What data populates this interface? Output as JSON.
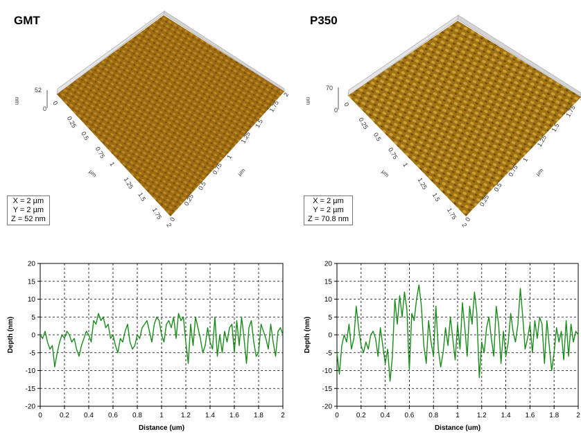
{
  "panels": [
    {
      "title": "GMT",
      "afm": {
        "z_max_label": "52",
        "z_min_label": "0",
        "z_unit": "nm",
        "axis_unit": "µm",
        "ticks_left": [
          "0",
          "0.25",
          "0.5",
          "0.75",
          "1",
          "1.25",
          "1.5",
          "1.75",
          "2"
        ],
        "ticks_right": [
          "0",
          "0.25",
          "0.5",
          "0.75",
          "1",
          "1.25",
          "1.5",
          "1.75",
          "2"
        ],
        "info": [
          "X = 2 µm",
          "Y = 2 µm",
          "Z = 52 nm"
        ],
        "colors": {
          "surface_dark": "#5a3a0a",
          "surface_mid": "#9c6a12",
          "surface_light": "#d9a830"
        }
      }
    },
    {
      "title": "P350",
      "afm": {
        "z_max_label": "70",
        "z_min_label": "0",
        "z_unit": "nm",
        "axis_unit": "µm",
        "ticks_left": [
          "0",
          "0.25",
          "0.5",
          "0.75",
          "1",
          "1.25",
          "1.5",
          "1.75",
          "2"
        ],
        "ticks_right": [
          "0",
          "0.25",
          "0.5",
          "0.75",
          "1",
          "1.25",
          "1.5",
          "1.75",
          "2"
        ],
        "info": [
          "X = 2 µm",
          "Y = 2 µm",
          "Z = 70.8 nm"
        ],
        "colors": {
          "surface_dark": "#4e3408",
          "surface_mid": "#a07214",
          "surface_light": "#e8c04a"
        }
      }
    }
  ],
  "chart_data": [
    {
      "type": "line",
      "title": "",
      "xlabel": "Distance (um)",
      "ylabel": "Depth (nm)",
      "xlim": [
        0,
        2
      ],
      "ylim": [
        -20,
        20
      ],
      "xticks": [
        "0",
        "0.2",
        "0.4",
        "0.6",
        "0.8",
        "1",
        "1.2",
        "1.4",
        "1.6",
        "1.8",
        "2"
      ],
      "yticks": [
        "20",
        "15",
        "10",
        "5",
        "0",
        "-5",
        "-10",
        "-15",
        "-20"
      ],
      "grid": "dashed",
      "line_color": "#1a8a1a",
      "series": [
        {
          "x": [
            0,
            0.02,
            0.04,
            0.06,
            0.08,
            0.1,
            0.12,
            0.14,
            0.16,
            0.18,
            0.2,
            0.22,
            0.24,
            0.26,
            0.28,
            0.3,
            0.32,
            0.34,
            0.36,
            0.38,
            0.4,
            0.42,
            0.44,
            0.46,
            0.48,
            0.5,
            0.52,
            0.54,
            0.56,
            0.58,
            0.6,
            0.62,
            0.64,
            0.66,
            0.68,
            0.7,
            0.72,
            0.74,
            0.76,
            0.78,
            0.8,
            0.82,
            0.84,
            0.86,
            0.88,
            0.9,
            0.92,
            0.94,
            0.96,
            0.98,
            1,
            1.02,
            1.04,
            1.06,
            1.08,
            1.1,
            1.12,
            1.14,
            1.16,
            1.18,
            1.2,
            1.22,
            1.24,
            1.26,
            1.28,
            1.3,
            1.32,
            1.34,
            1.36,
            1.38,
            1.4,
            1.42,
            1.44,
            1.46,
            1.48,
            1.5,
            1.52,
            1.54,
            1.56,
            1.58,
            1.6,
            1.62,
            1.64,
            1.66,
            1.68,
            1.7,
            1.72,
            1.74,
            1.76,
            1.78,
            1.8,
            1.82,
            1.84,
            1.86,
            1.88,
            1.9,
            1.92,
            1.94,
            1.96,
            1.98,
            2
          ],
          "y": [
            0,
            -1,
            1,
            -2,
            -4,
            -3,
            -9,
            -5,
            -2,
            0,
            -1,
            1,
            0,
            -2,
            -1,
            -4,
            -6,
            -3,
            -1,
            1,
            0,
            -2,
            4,
            3,
            6,
            4,
            5,
            2,
            3,
            -1,
            0,
            -3,
            -5,
            -1,
            -2,
            1,
            3,
            -2,
            -4,
            -3,
            0,
            -1,
            2,
            3,
            4,
            1,
            -2,
            3,
            5,
            4,
            0,
            -2,
            3,
            4,
            2,
            5,
            -1,
            6,
            4,
            5,
            -2,
            -8,
            3,
            -3,
            5,
            2,
            -1,
            -5,
            -3,
            2,
            -2,
            -4,
            5,
            -6,
            0,
            -5,
            1,
            -2,
            2,
            3,
            -5,
            4,
            -3,
            5,
            -1,
            -8,
            2,
            4,
            -2,
            -6,
            -5,
            3,
            1,
            -1,
            -4,
            3,
            -2,
            -6,
            1,
            2,
            0
          ]
        }
      ]
    },
    {
      "type": "line",
      "title": "",
      "xlabel": "Distance (um)",
      "ylabel": "Depth (nm)",
      "xlim": [
        0,
        2
      ],
      "ylim": [
        -20,
        20
      ],
      "xticks": [
        "0",
        "0.2",
        "0.4",
        "0.6",
        "0.8",
        "1",
        "1.2",
        "1.4",
        "1.6",
        "1.8",
        "2"
      ],
      "yticks": [
        "20",
        "15",
        "10",
        "5",
        "0",
        "-5",
        "-10",
        "-15",
        "-20"
      ],
      "grid": "dashed",
      "line_color": "#1a8a1a",
      "series": [
        {
          "x": [
            0,
            0.02,
            0.04,
            0.06,
            0.08,
            0.1,
            0.12,
            0.14,
            0.16,
            0.18,
            0.2,
            0.22,
            0.24,
            0.26,
            0.28,
            0.3,
            0.32,
            0.34,
            0.36,
            0.38,
            0.4,
            0.42,
            0.44,
            0.46,
            0.48,
            0.5,
            0.52,
            0.54,
            0.56,
            0.58,
            0.6,
            0.62,
            0.64,
            0.66,
            0.68,
            0.7,
            0.72,
            0.74,
            0.76,
            0.78,
            0.8,
            0.82,
            0.84,
            0.86,
            0.88,
            0.9,
            0.92,
            0.94,
            0.96,
            0.98,
            1,
            1.02,
            1.04,
            1.06,
            1.08,
            1.1,
            1.12,
            1.14,
            1.16,
            1.18,
            1.2,
            1.22,
            1.24,
            1.26,
            1.28,
            1.3,
            1.32,
            1.34,
            1.36,
            1.38,
            1.4,
            1.42,
            1.44,
            1.46,
            1.48,
            1.5,
            1.52,
            1.54,
            1.56,
            1.58,
            1.6,
            1.62,
            1.64,
            1.66,
            1.68,
            1.7,
            1.72,
            1.74,
            1.76,
            1.78,
            1.8,
            1.82,
            1.84,
            1.86,
            1.88,
            1.9,
            1.92,
            1.94,
            1.96,
            1.98,
            2
          ],
          "y": [
            -5,
            -11,
            -3,
            0,
            -2,
            3,
            -4,
            -1,
            8,
            2,
            -3,
            -5,
            -2,
            -4,
            0,
            1,
            -1,
            -6,
            2,
            -3,
            -8,
            -4,
            -13,
            -6,
            10,
            3,
            11,
            5,
            12,
            7,
            -10,
            6,
            4,
            10,
            14,
            8,
            -3,
            -8,
            4,
            -2,
            -6,
            8,
            -4,
            -9,
            -5,
            2,
            -3,
            5,
            -1,
            -7,
            3,
            -4,
            9,
            2,
            -6,
            8,
            3,
            12,
            6,
            -12,
            -2,
            -5,
            2,
            5,
            -1,
            -6,
            8,
            3,
            -8,
            1,
            -6,
            -2,
            6,
            1,
            -2,
            3,
            13,
            5,
            -4,
            -1,
            3,
            -5,
            4,
            -1,
            5,
            3,
            -8,
            4,
            -3,
            -10,
            -5,
            2,
            -2,
            1,
            -7,
            4,
            -6,
            3,
            -2,
            1,
            0
          ]
        }
      ]
    }
  ]
}
